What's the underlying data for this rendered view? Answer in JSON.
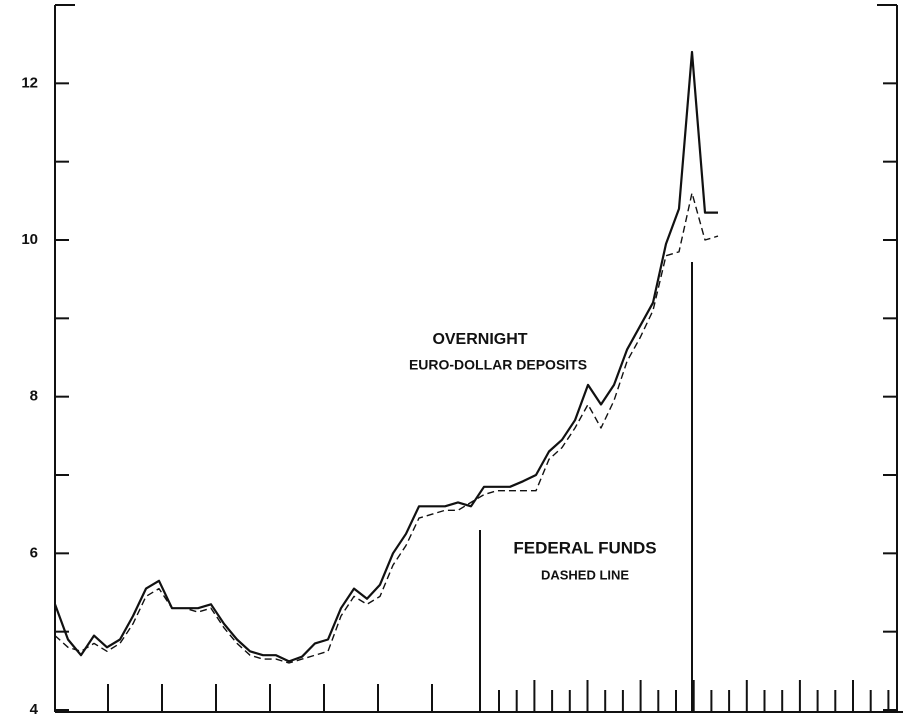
{
  "chart_data": {
    "type": "line",
    "annotations": [
      "OVERNIGHT",
      "EURO-DOLLAR DEPOSITS",
      "FEDERAL FUNDS",
      "DASHED LINE"
    ],
    "series": [
      {
        "color": "#111111",
        "dashed": false,
        "values": [
          5.35,
          4.9,
          4.7,
          4.95,
          4.8,
          4.9,
          5.2,
          5.55,
          5.65,
          5.3,
          5.3,
          5.3,
          5.35,
          5.1,
          4.9,
          4.75,
          4.7,
          4.7,
          4.62,
          4.68,
          4.85,
          4.9,
          5.3,
          5.55,
          5.42,
          5.6,
          6.0,
          6.25,
          6.6,
          6.6,
          6.6,
          6.65,
          6.6,
          6.85,
          6.85,
          6.85,
          6.92,
          7.0,
          7.3,
          7.45,
          7.7,
          8.15,
          7.9,
          8.15,
          8.6,
          8.9,
          9.2,
          9.95,
          10.4,
          12.4,
          10.35,
          10.35
        ]
      },
      {
        "color": "#111111",
        "dashed": true,
        "values": [
          4.95,
          4.8,
          4.75,
          4.85,
          4.75,
          4.85,
          5.1,
          5.45,
          5.55,
          5.3,
          5.3,
          5.25,
          5.3,
          5.05,
          4.85,
          4.7,
          4.65,
          4.65,
          4.6,
          4.65,
          4.7,
          4.75,
          5.2,
          5.45,
          5.35,
          5.45,
          5.85,
          6.1,
          6.45,
          6.5,
          6.55,
          6.55,
          6.65,
          6.75,
          6.8,
          6.8,
          6.8,
          6.8,
          7.2,
          7.35,
          7.6,
          7.9,
          7.6,
          7.95,
          8.45,
          8.75,
          9.1,
          9.8,
          9.85,
          10.6,
          10.0,
          10.05
        ]
      }
    ],
    "ylim": [
      4,
      13
    ],
    "yticks": [
      4,
      6,
      8,
      10,
      12
    ],
    "yticks_minor": [
      5,
      7,
      9,
      11
    ]
  }
}
